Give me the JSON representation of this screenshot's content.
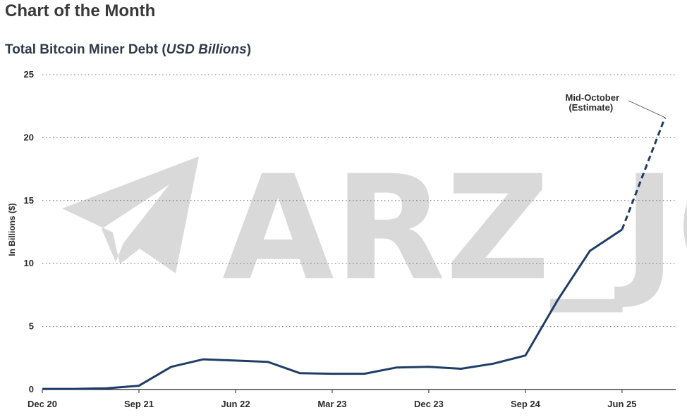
{
  "page": {
    "title": "Chart of the Month"
  },
  "watermark": {
    "text": "ARZ_JO",
    "icon": "paper-plane-icon",
    "color": "#d9d9d9"
  },
  "chart_data": {
    "type": "line",
    "title_main": "Total Bitcoin Miner Debt (",
    "title_unit": "USD Billions",
    "title_close": ")",
    "ylabel": "In Billions ($)",
    "ylim": [
      0,
      25
    ],
    "yticks": [
      0,
      5,
      10,
      15,
      20,
      25
    ],
    "grid": "horizontal-dotted",
    "xlim": [
      "2020-12",
      "2025-11"
    ],
    "xticks": [
      {
        "x": "2020-12",
        "label": "Dec 20"
      },
      {
        "x": "2021-09",
        "label": "Sep 21"
      },
      {
        "x": "2022-06",
        "label": "Jun 22"
      },
      {
        "x": "2023-03",
        "label": "Mar 23"
      },
      {
        "x": "2023-12",
        "label": "Dec 23"
      },
      {
        "x": "2024-09",
        "label": "Sep 24"
      },
      {
        "x": "2025-06",
        "label": "Jun 25"
      }
    ],
    "color": "#1f3d66",
    "series": [
      {
        "style": "solid",
        "x": [
          "2020-12",
          "2021-03",
          "2021-06",
          "2021-09",
          "2021-12",
          "2022-03",
          "2022-06",
          "2022-09",
          "2022-12",
          "2023-03",
          "2023-06",
          "2023-09",
          "2023-12",
          "2024-03",
          "2024-06",
          "2024-09",
          "2024-12",
          "2025-03",
          "2025-06"
        ],
        "y": [
          0.05,
          0.05,
          0.1,
          0.3,
          1.8,
          2.4,
          2.3,
          2.2,
          1.3,
          1.25,
          1.25,
          1.75,
          1.8,
          1.65,
          2.05,
          2.7,
          7.1,
          11.0,
          12.7
        ]
      },
      {
        "style": "dashed",
        "x": [
          "2025-06",
          "2025-10"
        ],
        "y": [
          12.7,
          21.6
        ]
      }
    ],
    "annotation": {
      "line1": "Mid-October",
      "line2": "(Estimate)",
      "x": "2025-10",
      "y": 21.6
    }
  }
}
